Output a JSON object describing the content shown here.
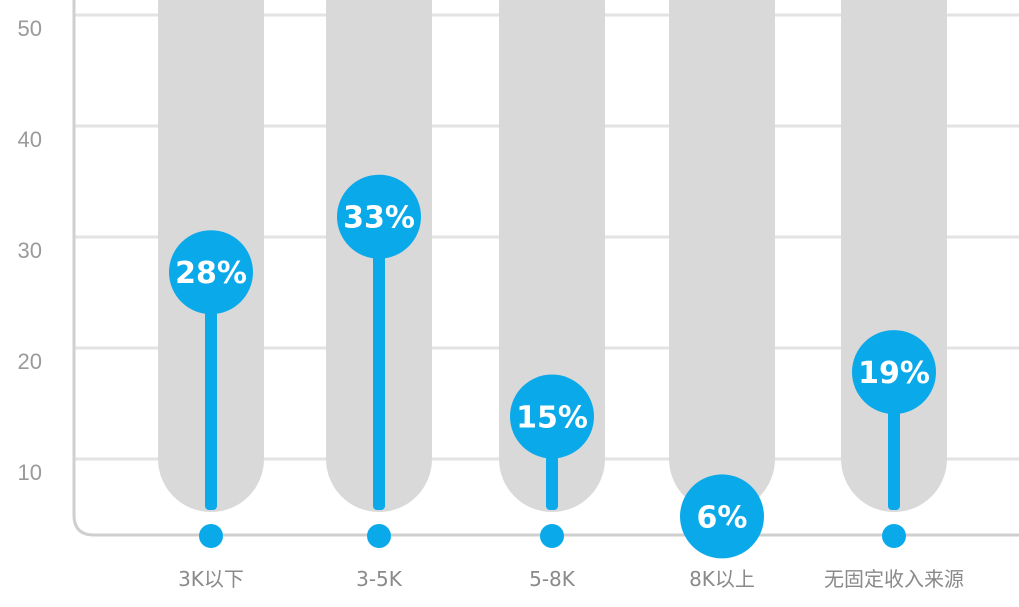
{
  "chart_data": {
    "type": "bar",
    "title": "",
    "xlabel": "",
    "ylabel": "",
    "categories": [
      "3K以下",
      "3-5K",
      "5-8K",
      "8K以上",
      "无固定收入来源"
    ],
    "values": [
      28,
      33,
      15,
      6,
      19
    ],
    "value_labels": [
      "28%",
      "33%",
      "15%",
      "6%",
      "19%"
    ],
    "y_ticks": [
      10,
      20,
      30,
      40,
      50
    ],
    "y_tick_labels": [
      "10",
      "20",
      "30",
      "40",
      "50"
    ],
    "ylim": [
      5,
      52
    ],
    "grid": true,
    "legend": "none",
    "colors": {
      "accent": "#0aa9ea",
      "track": "#d9d9d9",
      "grid": "#e3e3e3",
      "axis": "#cfcfcf",
      "label_text": "#ffffff"
    }
  }
}
